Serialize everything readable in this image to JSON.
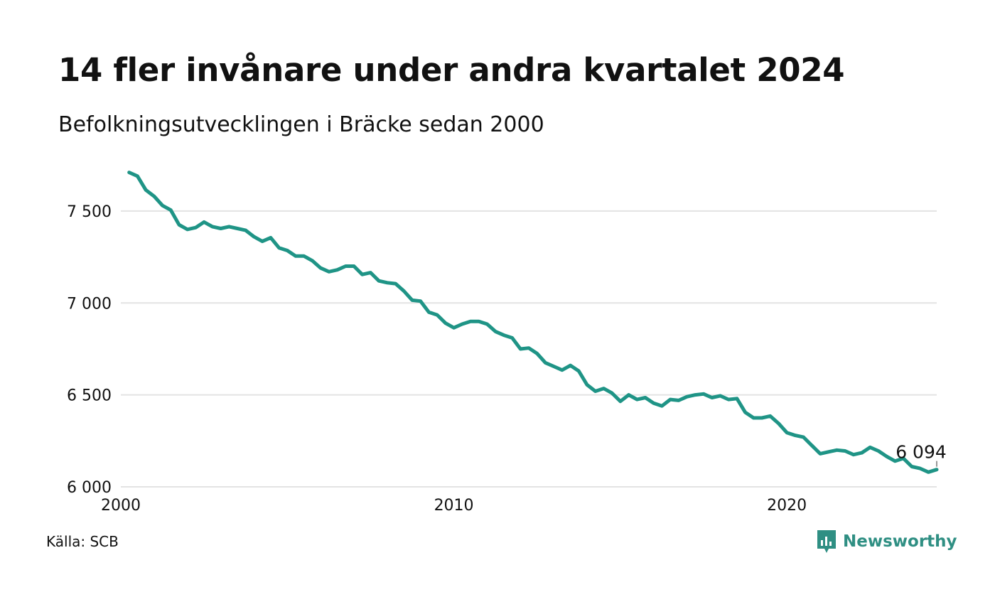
{
  "header": {
    "title": "14 fler invånare under andra kvartalet 2024",
    "subtitle": "Befolkningsutvecklingen i Bräcke sedan 2000"
  },
  "footer": {
    "source": "Källa: SCB",
    "brand": "Newsworthy"
  },
  "colors": {
    "line": "#1f9486",
    "grid": "#e3e3e3",
    "brand": "#2f8f83"
  },
  "icons": {
    "brand_logo": "newsworthy-logo-icon"
  },
  "chart_data": {
    "type": "line",
    "x_unit": "year (quarterly points)",
    "ylim": [
      6000,
      7720
    ],
    "xlim": [
      2000,
      2024.5
    ],
    "y_ticks": [
      6000,
      6500,
      7000,
      7500
    ],
    "y_tick_labels": [
      "6 000",
      "6 500",
      "7 000",
      "7 500"
    ],
    "x_ticks": [
      2000,
      2010,
      2020
    ],
    "x_tick_labels": [
      "2000",
      "2010",
      "2020"
    ],
    "grid": "horizontal",
    "end_label": "6 094",
    "series": [
      {
        "x": [
          2000.25,
          2000.5,
          2000.75,
          2001.0,
          2001.25,
          2001.5,
          2001.75,
          2002.0,
          2002.25,
          2002.5,
          2002.75,
          2003.0,
          2003.25,
          2003.5,
          2003.75,
          2004.0,
          2004.25,
          2004.5,
          2004.75,
          2005.0,
          2005.25,
          2005.5,
          2005.75,
          2006.0,
          2006.25,
          2006.5,
          2006.75,
          2007.0,
          2007.25,
          2007.5,
          2007.75,
          2008.0,
          2008.25,
          2008.5,
          2008.75,
          2009.0,
          2009.25,
          2009.5,
          2009.75,
          2010.0,
          2010.25,
          2010.5,
          2010.75,
          2011.0,
          2011.25,
          2011.5,
          2011.75,
          2012.0,
          2012.25,
          2012.5,
          2012.75,
          2013.0,
          2013.25,
          2013.5,
          2013.75,
          2014.0,
          2014.25,
          2014.5,
          2014.75,
          2015.0,
          2015.25,
          2015.5,
          2015.75,
          2016.0,
          2016.25,
          2016.5,
          2016.75,
          2017.0,
          2017.25,
          2017.5,
          2017.75,
          2018.0,
          2018.25,
          2018.5,
          2018.75,
          2019.0,
          2019.25,
          2019.5,
          2019.75,
          2020.0,
          2020.25,
          2020.5,
          2020.75,
          2021.0,
          2021.25,
          2021.5,
          2021.75,
          2022.0,
          2022.25,
          2022.5,
          2022.75,
          2023.0,
          2023.25,
          2023.5,
          2023.75,
          2024.0,
          2024.25,
          2024.5
        ],
        "values": [
          7710,
          7690,
          7615,
          7580,
          7530,
          7505,
          7425,
          7400,
          7410,
          7440,
          7415,
          7405,
          7415,
          7405,
          7395,
          7360,
          7335,
          7355,
          7300,
          7285,
          7255,
          7255,
          7230,
          7190,
          7170,
          7180,
          7200,
          7200,
          7155,
          7165,
          7120,
          7110,
          7105,
          7065,
          7015,
          7010,
          6950,
          6935,
          6890,
          6865,
          6885,
          6900,
          6900,
          6885,
          6845,
          6825,
          6810,
          6750,
          6755,
          6725,
          6675,
          6655,
          6635,
          6660,
          6630,
          6555,
          6520,
          6535,
          6510,
          6465,
          6500,
          6475,
          6485,
          6455,
          6440,
          6475,
          6470,
          6490,
          6500,
          6505,
          6485,
          6495,
          6475,
          6480,
          6405,
          6375,
          6375,
          6385,
          6345,
          6295,
          6280,
          6270,
          6225,
          6180,
          6190,
          6200,
          6195,
          6175,
          6185,
          6215,
          6195,
          6165,
          6140,
          6155,
          6110,
          6100,
          6080,
          6094
        ]
      }
    ]
  }
}
